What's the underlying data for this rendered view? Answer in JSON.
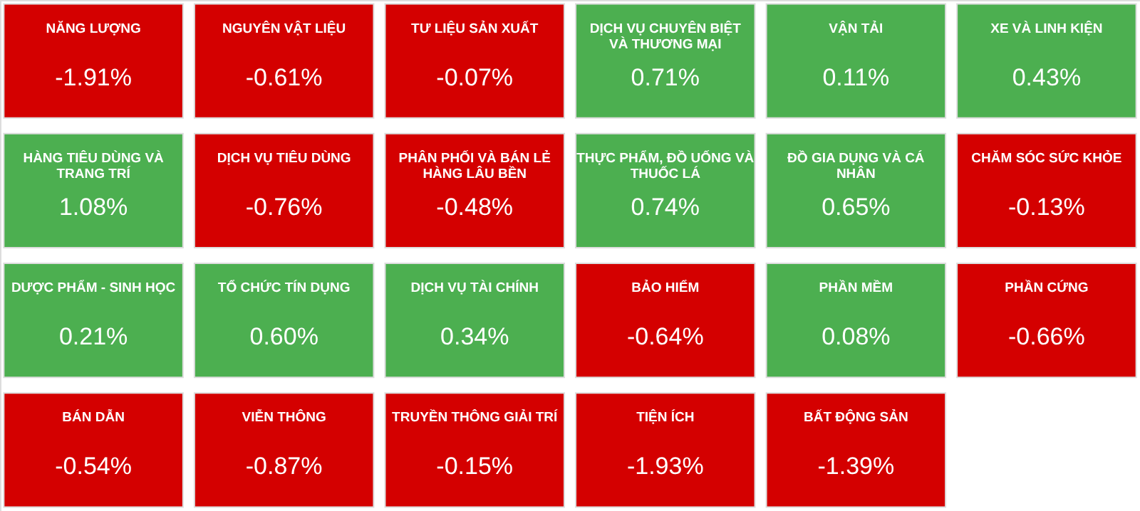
{
  "chart_data": {
    "type": "other",
    "categories": [
      "NĂNG LƯỢNG",
      "NGUYÊN VẬT LIỆU",
      "TƯ LIỆU SẢN XUẤT",
      "DỊCH VỤ CHUYÊN BIỆT VÀ THƯƠNG MẠI",
      "VẬN TẢI",
      "XE VÀ LINH KIỆN",
      "HÀNG TIÊU DÙNG VÀ TRANG TRÍ",
      "DỊCH VỤ TIÊU DÙNG",
      "PHÂN PHỐI VÀ BÁN LẺ HÀNG LÂU BỀN",
      "THỰC PHẨM, ĐỒ UỐNG VÀ THUỐC LÁ",
      "ĐỒ GIA DỤNG VÀ CÁ NHÂN",
      "CHĂM SÓC SỨC KHỎE",
      "DƯỢC PHẨM - SINH HỌC",
      "TỔ CHỨC TÍN DỤNG",
      "DỊCH VỤ TÀI CHÍNH",
      "BẢO HIỂM",
      "PHẦN MỀM",
      "PHẦN CỨNG",
      "BÁN DẪN",
      "VIỄN THÔNG",
      "TRUYỀN THÔNG GIẢI TRÍ",
      "TIỆN ÍCH",
      "BẤT ĐỘNG SẢN"
    ],
    "values": [
      -1.91,
      -0.61,
      -0.07,
      0.71,
      0.11,
      0.43,
      1.08,
      -0.76,
      -0.48,
      0.74,
      0.65,
      -0.13,
      0.21,
      0.6,
      0.34,
      -0.64,
      0.08,
      -0.66,
      -0.54,
      -0.87,
      -0.15,
      -1.93,
      -1.39
    ],
    "value_labels": [
      "-1.91%",
      "-0.61%",
      "-0.07%",
      "0.71%",
      "0.11%",
      "0.43%",
      "1.08%",
      "-0.76%",
      "-0.48%",
      "0.74%",
      "0.65%",
      "-0.13%",
      "0.21%",
      "0.60%",
      "0.34%",
      "-0.64%",
      "0.08%",
      "-0.66%",
      "-0.54%",
      "-0.87%",
      "-0.15%",
      "-1.93%",
      "-1.39%"
    ],
    "colors": [
      "#d40000",
      "#d40000",
      "#d40000",
      "#4caf50",
      "#4caf50",
      "#4caf50",
      "#4caf50",
      "#d40000",
      "#d40000",
      "#4caf50",
      "#4caf50",
      "#d40000",
      "#4caf50",
      "#4caf50",
      "#4caf50",
      "#d40000",
      "#4caf50",
      "#d40000",
      "#d40000",
      "#d40000",
      "#d40000",
      "#d40000",
      "#d40000"
    ]
  }
}
